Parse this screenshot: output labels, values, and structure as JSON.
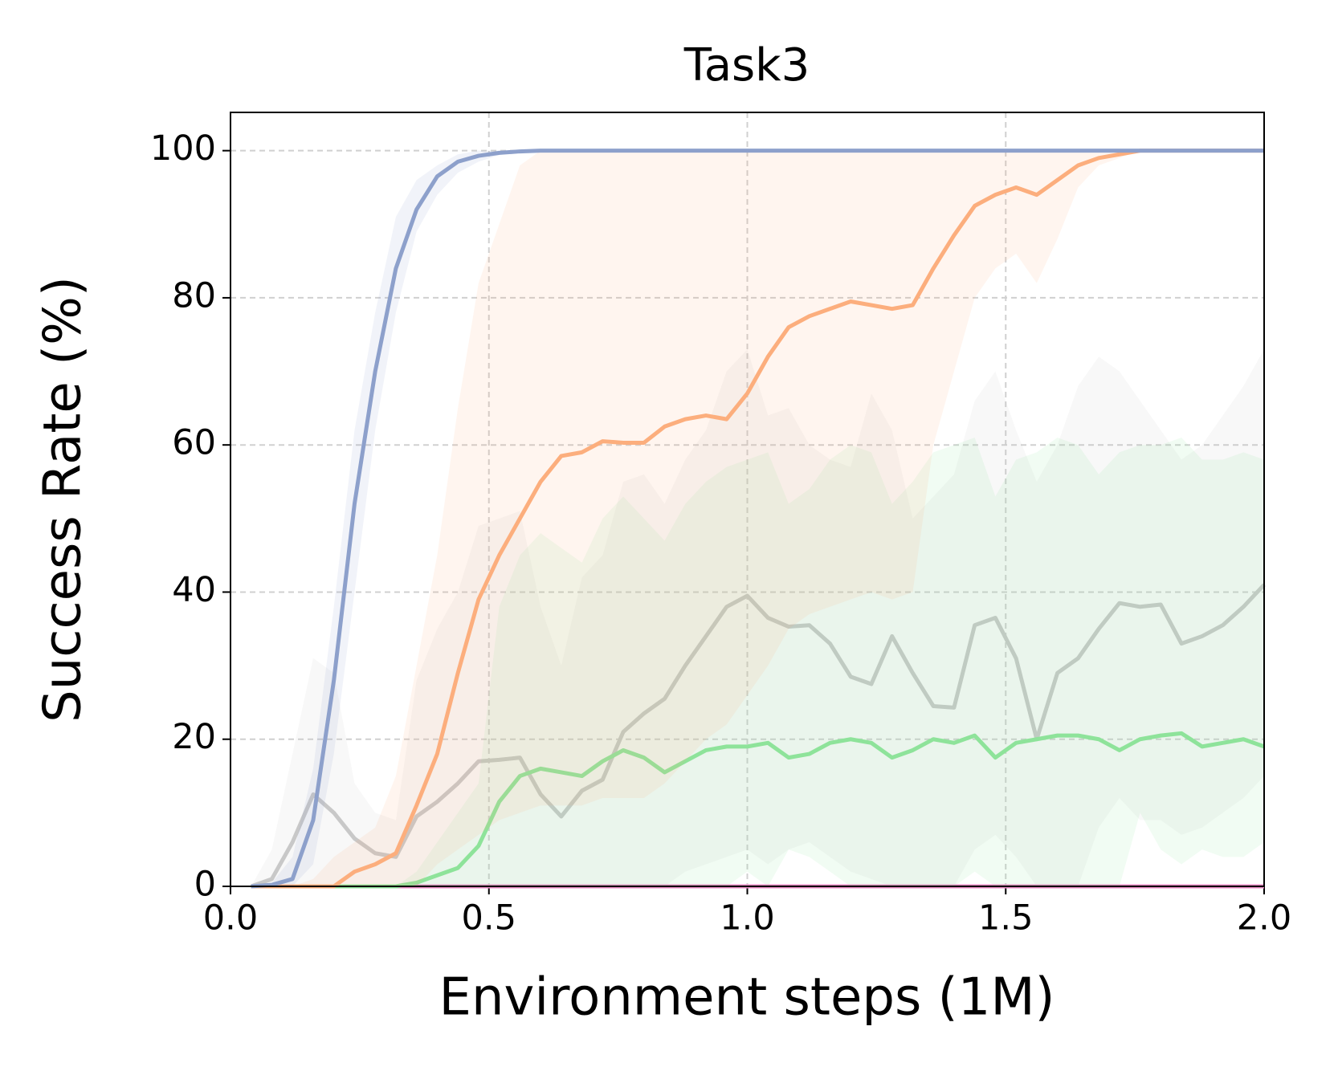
{
  "chart_data": {
    "type": "line",
    "title": "Task3",
    "xlabel": "Environment steps (1M)",
    "ylabel": "Success Rate (%)",
    "x": [
      0.04,
      0.08,
      0.12,
      0.16,
      0.2,
      0.24,
      0.28,
      0.32,
      0.36,
      0.4,
      0.44,
      0.48,
      0.52,
      0.56,
      0.6,
      0.64,
      0.68,
      0.72,
      0.76,
      0.8,
      0.84,
      0.88,
      0.92,
      0.96,
      1.0,
      1.04,
      1.08,
      1.12,
      1.16,
      1.2,
      1.24,
      1.28,
      1.32,
      1.36,
      1.4,
      1.44,
      1.48,
      1.52,
      1.56,
      1.6,
      1.64,
      1.68,
      1.72,
      1.76,
      1.8,
      1.84,
      1.88,
      1.92,
      1.96,
      2.0
    ],
    "series": [
      {
        "color": "#e78ac3",
        "values": [
          0,
          0,
          0,
          0,
          0,
          0,
          0,
          0,
          0,
          0,
          0,
          0,
          0,
          0,
          0,
          0,
          0,
          0,
          0,
          0,
          0,
          0,
          0,
          0,
          0,
          0,
          0,
          0,
          0,
          0,
          0,
          0,
          0,
          0,
          0,
          0,
          0,
          0,
          0,
          0,
          0,
          0,
          0,
          0,
          0,
          0,
          0,
          0,
          0,
          0
        ]
      },
      {
        "color": "#c8c8c8",
        "values": [
          0,
          1,
          6,
          12.5,
          10,
          6.5,
          4.5,
          4,
          9.5,
          11.5,
          14,
          17,
          17.2,
          17.5,
          12.5,
          9.5,
          13,
          14.5,
          21,
          23.5,
          25.5,
          30,
          34,
          38,
          39.5,
          36.5,
          35.3,
          35.5,
          33,
          28.5,
          27.5,
          34,
          29,
          24.5,
          24.3,
          35.5,
          36.5,
          31,
          20,
          29,
          31,
          35,
          38.5,
          38,
          38.3,
          33,
          34,
          35.5,
          38,
          41
        ],
        "lower": [
          0,
          0,
          0,
          0,
          0,
          0,
          0,
          0,
          0,
          0,
          0,
          0,
          0,
          0,
          0,
          0,
          0,
          0,
          0,
          0,
          0,
          2,
          3,
          4,
          5,
          3,
          5,
          6,
          4,
          2,
          1,
          0,
          0,
          0,
          0,
          5,
          7,
          4,
          0,
          0,
          0,
          8,
          12,
          9,
          9,
          7,
          8,
          10,
          12,
          15
        ],
        "upper": [
          0,
          5,
          18,
          31,
          29,
          14,
          10,
          9,
          28,
          35,
          40,
          49,
          50,
          51,
          38,
          30,
          42,
          45,
          55,
          56,
          52,
          58,
          62,
          70,
          73,
          64,
          65,
          60,
          58,
          57,
          67,
          62,
          50,
          53,
          56,
          66,
          70,
          62,
          55,
          60,
          68,
          72,
          70,
          66,
          62,
          58,
          60,
          64,
          68,
          73
        ]
      },
      {
        "color": "#8ee39a",
        "values": [
          0,
          0,
          0,
          0,
          0,
          0,
          0,
          0,
          0.5,
          1.5,
          2.5,
          5.5,
          11.5,
          15,
          16,
          15.5,
          15,
          17,
          18.5,
          17.5,
          15.5,
          17,
          18.5,
          19,
          19,
          19.5,
          17.5,
          18,
          19.5,
          20,
          19.5,
          17.5,
          18.5,
          20,
          19.5,
          20.5,
          17.5,
          19.5,
          20,
          20.5,
          20.5,
          20,
          18.5,
          20,
          20.5,
          20.8,
          19,
          19.5,
          20,
          19
        ],
        "lower": [
          0,
          0,
          0,
          0,
          0,
          0,
          0,
          0,
          0,
          0,
          0,
          0,
          0,
          0,
          0,
          0,
          0,
          0,
          0,
          0,
          0,
          0,
          0,
          0,
          2,
          0,
          5,
          4,
          2,
          0,
          0,
          0,
          0,
          0,
          0,
          2,
          0,
          0,
          0,
          0,
          0,
          0,
          0,
          10,
          5,
          3,
          5,
          4,
          4,
          6
        ],
        "upper": [
          0,
          0,
          0,
          0,
          0,
          0,
          0,
          0,
          2,
          6,
          10,
          14,
          38,
          45,
          48,
          46,
          44,
          50,
          53,
          50,
          47,
          52,
          55,
          57,
          58,
          59,
          52,
          54,
          58,
          60,
          59,
          52,
          55,
          59,
          60,
          61,
          53,
          58,
          59,
          61,
          60,
          56,
          59,
          60,
          60,
          61,
          58,
          58,
          59,
          58
        ]
      },
      {
        "color": "#fcae7d",
        "values": [
          0,
          0,
          0,
          0,
          0,
          2,
          3,
          4.5,
          11,
          18,
          29,
          39,
          45,
          50,
          55,
          58.5,
          59,
          60.5,
          60.3,
          60.3,
          62.5,
          63.5,
          64,
          63.5,
          67,
          72,
          76,
          77.5,
          78.5,
          79.5,
          79,
          78.5,
          79,
          84,
          88.5,
          92.5,
          94,
          95,
          94,
          96,
          98,
          99,
          99.5,
          100,
          100,
          100,
          100,
          100,
          100,
          100
        ],
        "lower": [
          0,
          0,
          0,
          0,
          0,
          0,
          0,
          0,
          0,
          3,
          5,
          7,
          9,
          10,
          11,
          11,
          11,
          12,
          12,
          12,
          14,
          17,
          20,
          22,
          26,
          30,
          35,
          37,
          38,
          39,
          40,
          39,
          40,
          60,
          70,
          80,
          84,
          86,
          82,
          88,
          95,
          98,
          99,
          100,
          100,
          100,
          100,
          100,
          100,
          100
        ],
        "upper": [
          0,
          0,
          0,
          1,
          4,
          6,
          8,
          15,
          30,
          45,
          65,
          82,
          90,
          98,
          100,
          100,
          100,
          100,
          100,
          100,
          100,
          100,
          100,
          100,
          100,
          100,
          100,
          100,
          100,
          100,
          100,
          100,
          100,
          100,
          100,
          100,
          100,
          100,
          100,
          100,
          100,
          100,
          100,
          100,
          100,
          100,
          100,
          100,
          100,
          100
        ]
      },
      {
        "color": "#8da0cb",
        "values": [
          0,
          0.2,
          1,
          9,
          28,
          52,
          70,
          84,
          92,
          96.5,
          98.5,
          99.3,
          99.7,
          99.9,
          100,
          100,
          100,
          100,
          100,
          100,
          100,
          100,
          100,
          100,
          100,
          100,
          100,
          100,
          100,
          100,
          100,
          100,
          100,
          100,
          100,
          100,
          100,
          100,
          100,
          100,
          100,
          100,
          100,
          100,
          100,
          100,
          100,
          100,
          100,
          100
        ],
        "lower": [
          0,
          0,
          0,
          3,
          18,
          40,
          62,
          78,
          89,
          94,
          97,
          98.5,
          99.4,
          99.8,
          100,
          100,
          100,
          100,
          100,
          100,
          100,
          100,
          100,
          100,
          100,
          100,
          100,
          100,
          100,
          100,
          100,
          100,
          100,
          100,
          100,
          100,
          100,
          100,
          100,
          100,
          100,
          100,
          100,
          100,
          100,
          100,
          100,
          100,
          100,
          100
        ],
        "upper": [
          0,
          0.5,
          4,
          16,
          38,
          62,
          78,
          91,
          96,
          98,
          99.5,
          100,
          100,
          100,
          100,
          100,
          100,
          100,
          100,
          100,
          100,
          100,
          100,
          100,
          100,
          100,
          100,
          100,
          100,
          100,
          100,
          100,
          100,
          100,
          100,
          100,
          100,
          100,
          100,
          100,
          100,
          100,
          100,
          100,
          100,
          100,
          100,
          100,
          100,
          100
        ]
      }
    ],
    "xlim": [
      0,
      2
    ],
    "ylim": [
      0,
      105.2
    ],
    "xticks": [
      {
        "value": 0,
        "label": "0.0"
      },
      {
        "value": 0.5,
        "label": "0.5"
      },
      {
        "value": 1,
        "label": "1.0"
      },
      {
        "value": 1.5,
        "label": "1.5"
      },
      {
        "value": 2,
        "label": "2.0"
      }
    ],
    "yticks": [
      0,
      20,
      40,
      60,
      80,
      100
    ],
    "grid": true
  }
}
